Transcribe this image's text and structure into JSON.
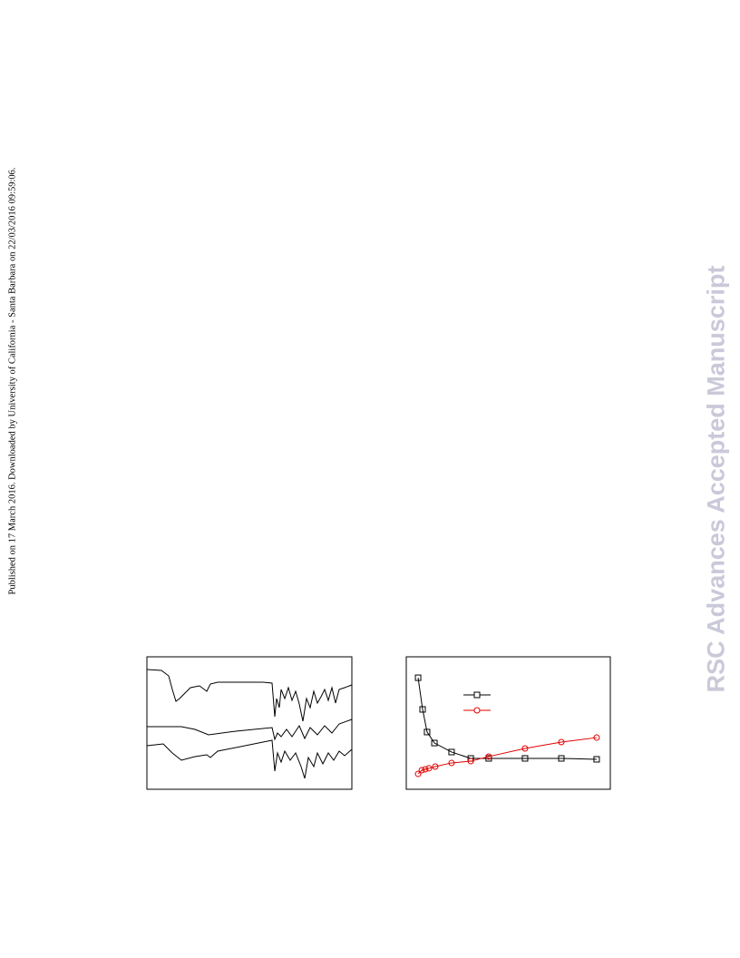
{
  "sidebar": "Published on 17 March 2016. Downloaded by University of California - Santa Barbara on 22/03/2016 09:59:06.",
  "watermark": "RSC Advances Accepted Manuscript",
  "chart_data": {
    "type": "scatter",
    "xlim": [
      0,
      100
    ],
    "ylim": [
      0,
      100
    ],
    "series": [
      {
        "color": "#000000",
        "marker": "square",
        "x": [
          5.8,
          8,
          10.2,
          13.8,
          22.2,
          31.6,
          40.4,
          58.2,
          76,
          93.3
        ],
        "values": [
          84.2,
          60.3,
          43.2,
          34.9,
          28.1,
          23.3,
          23.3,
          23.3,
          23.3,
          22.6
        ]
      },
      {
        "color": "#e00000",
        "marker": "circle",
        "x": [
          5.8,
          7.6,
          9.3,
          11.1,
          14.2,
          22.2,
          31.6,
          40.4,
          58.2,
          76,
          93.3
        ],
        "values": [
          11.6,
          14.4,
          15.1,
          15.8,
          17.1,
          19.9,
          21.2,
          24.7,
          30.8,
          35.6,
          39.0
        ]
      }
    ]
  }
}
